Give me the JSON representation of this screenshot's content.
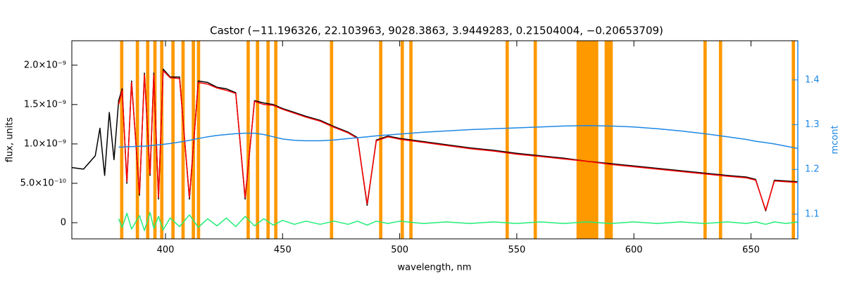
{
  "chart_data": {
    "type": "line",
    "title": "Castor   (−11.196326, 22.103963, 9028.3863, 3.9449283, 0.21504004, −0.20653709)",
    "x_label": "wavelength, nm",
    "y_label": "flux, units",
    "y2_label": "mcont",
    "xlim": [
      360,
      670
    ],
    "xticks": [
      400,
      450,
      500,
      550,
      600,
      650
    ],
    "ylim": [
      -2.05e-10,
      2.31e-09
    ],
    "yticks": [
      {
        "value": 0,
        "label": "0"
      },
      {
        "value": 5e-10,
        "label": "5.0×10⁻¹⁰"
      },
      {
        "value": 1e-09,
        "label": "1.0×10⁻⁹"
      },
      {
        "value": 1.5e-09,
        "label": "1.5×10⁻⁹"
      },
      {
        "value": 2e-09,
        "label": "2.0×10⁻⁹"
      }
    ],
    "y2lim": [
      1.045,
      1.4875
    ],
    "y2ticks": [
      1.1,
      1.2,
      1.3,
      1.4
    ],
    "y2_color": "#1e88e5",
    "mask": {
      "color": "#ff9900",
      "ranges": [
        [
          380.6,
          382.0
        ],
        [
          387.3,
          388.7
        ],
        [
          391.7,
          393.1
        ],
        [
          394.8,
          396.2
        ],
        [
          397.7,
          399.1
        ],
        [
          402.5,
          403.9
        ],
        [
          406.8,
          408.2
        ],
        [
          411.2,
          412.6
        ],
        [
          413.4,
          414.8
        ],
        [
          434.6,
          436.0
        ],
        [
          438.6,
          440.0
        ],
        [
          443.1,
          444.5
        ],
        [
          446.4,
          447.8
        ],
        [
          470.2,
          471.6
        ],
        [
          491.2,
          492.6
        ],
        [
          500.4,
          501.8
        ],
        [
          504.1,
          505.5
        ],
        [
          545.2,
          546.6
        ],
        [
          557.2,
          558.6
        ],
        [
          575.5,
          584.8
        ],
        [
          587.5,
          591.0
        ],
        [
          629.7,
          631.1
        ],
        [
          636.3,
          637.7
        ],
        [
          667.4,
          668.8
        ]
      ]
    },
    "x": [
      360,
      365,
      370,
      372,
      374,
      376,
      378,
      380,
      381.5,
      383.5,
      385.5,
      388.9,
      391,
      393.4,
      395,
      397,
      399,
      402,
      406,
      410.2,
      414,
      418,
      422,
      426,
      430,
      434,
      438,
      442,
      446,
      450,
      455,
      460,
      466,
      472,
      478,
      482,
      486.1,
      490,
      495,
      500,
      510,
      520,
      530,
      540,
      550,
      560,
      570,
      580,
      590,
      600,
      610,
      620,
      630,
      640,
      648,
      652,
      656.3,
      660,
      665,
      670
    ],
    "series": [
      {
        "color": "#000000",
        "values": [
          7e-10,
          6.8e-10,
          8.5e-10,
          1.2e-09,
          6e-10,
          1.4e-09,
          8e-10,
          1.55e-09,
          1.7e-09,
          5e-10,
          1.8e-09,
          3.5e-10,
          1.9e-09,
          6e-10,
          1.9e-09,
          3e-10,
          1.95e-09,
          1.85e-09,
          1.85e-09,
          3e-10,
          1.8e-09,
          1.78e-09,
          1.72e-09,
          1.7e-09,
          1.65e-09,
          3e-10,
          1.55e-09,
          1.52e-09,
          1.5e-09,
          1.45e-09,
          1.4e-09,
          1.35e-09,
          1.3e-09,
          1.22e-09,
          1.15e-09,
          1.08e-09,
          2.2e-10,
          1.05e-09,
          1.1e-09,
          1.07e-09,
          1.03e-09,
          9.9e-10,
          9.5e-10,
          9.2e-10,
          8.8e-10,
          8.5e-10,
          8.2e-10,
          7.8e-10,
          7.5e-10,
          7.2e-10,
          6.9e-10,
          6.6e-10,
          6.3e-10,
          6e-10,
          5.8e-10,
          5.5e-10,
          1.5e-10,
          5.4e-10,
          5.3e-10,
          5.2e-10
        ]
      },
      {
        "color": "#ff0000",
        "values": [
          null,
          null,
          null,
          null,
          null,
          null,
          null,
          1.5e-09,
          1.68e-09,
          5.2e-10,
          1.78e-09,
          3.7e-10,
          1.88e-09,
          6.2e-10,
          1.88e-09,
          3.2e-10,
          1.93e-09,
          1.84e-09,
          1.83e-09,
          3.2e-10,
          1.78e-09,
          1.76e-09,
          1.71e-09,
          1.68e-09,
          1.64e-09,
          3.2e-10,
          1.54e-09,
          1.5e-09,
          1.49e-09,
          1.44e-09,
          1.39e-09,
          1.34e-09,
          1.29e-09,
          1.21e-09,
          1.14e-09,
          1.07e-09,
          2.4e-10,
          1.04e-09,
          1.09e-09,
          1.06e-09,
          1.02e-09,
          9.8e-10,
          9.4e-10,
          9.1e-10,
          8.7e-10,
          8.4e-10,
          8.1e-10,
          7.8e-10,
          7.4e-10,
          7.1e-10,
          6.8e-10,
          6.5e-10,
          6.2e-10,
          5.9e-10,
          5.7e-10,
          5.4e-10,
          1.6e-10,
          5.3e-10,
          5.2e-10,
          5.1e-10
        ]
      },
      {
        "color": "#22ee77",
        "values": [
          null,
          null,
          null,
          null,
          null,
          null,
          null,
          5e-11,
          -6e-11,
          1.2e-10,
          -8e-11,
          9e-11,
          -1e-10,
          1.3e-10,
          -7e-11,
          8e-11,
          -9e-11,
          6e-11,
          -5e-11,
          1e-10,
          -6e-11,
          5e-11,
          -4e-11,
          6e-11,
          -5e-11,
          8e-11,
          -4e-11,
          5e-11,
          -3e-11,
          3e-11,
          -2e-11,
          2e-11,
          -2e-11,
          2e-11,
          -2e-11,
          2e-11,
          -3e-11,
          2e-11,
          -1e-11,
          2e-11,
          -1e-11,
          1e-11,
          -1e-11,
          1e-11,
          -1e-11,
          1e-11,
          -1e-11,
          1e-11,
          -1e-11,
          1e-11,
          -1e-11,
          1e-11,
          -1e-11,
          1e-11,
          -1e-11,
          1e-11,
          -2e-11,
          1e-11,
          -1e-11,
          1e-11
        ]
      },
      {
        "color": "#1e88e5",
        "axis": "y2",
        "values": [
          null,
          null,
          null,
          null,
          null,
          null,
          null,
          1.25,
          1.25,
          1.251,
          1.251,
          1.252,
          1.252,
          1.253,
          1.254,
          1.255,
          1.256,
          1.258,
          1.261,
          1.265,
          1.269,
          1.273,
          1.276,
          1.278,
          1.28,
          1.281,
          1.281,
          1.278,
          1.273,
          1.268,
          1.265,
          1.264,
          1.264,
          1.266,
          1.269,
          1.271,
          1.273,
          1.275,
          1.277,
          1.279,
          1.283,
          1.286,
          1.289,
          1.291,
          1.293,
          1.295,
          1.297,
          1.298,
          1.297,
          1.295,
          1.291,
          1.286,
          1.28,
          1.273,
          1.267,
          1.263,
          1.26,
          1.257,
          1.252,
          1.247
        ]
      }
    ]
  }
}
